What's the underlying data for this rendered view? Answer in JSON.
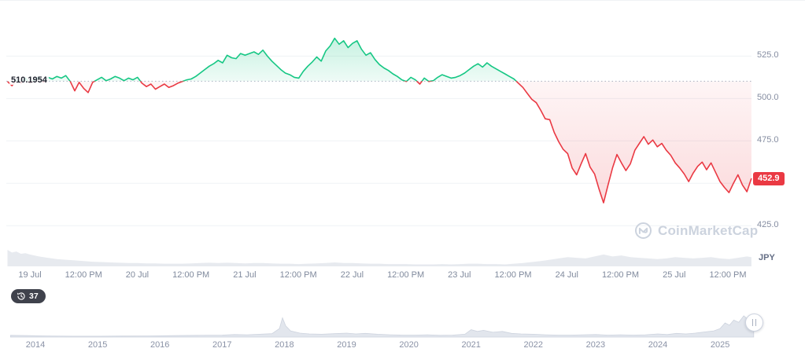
{
  "chart_data": {
    "type": "line",
    "currency": "JPY",
    "baseline": 510.1954,
    "baseline_label": "510.1954",
    "current_price": 452.9,
    "ylim": [
      420,
      540
    ],
    "y_gridlines": [
      525,
      500,
      475,
      450,
      425
    ],
    "x_labels": [
      "19 Jul",
      "12:00 PM",
      "20 Jul",
      "12:00 PM",
      "21 Jul",
      "12:00 PM",
      "22 Jul",
      "12:00 PM",
      "23 Jul",
      "12:00 PM",
      "24 Jul",
      "12:00 PM",
      "25 Jul",
      "12:00 PM"
    ],
    "colors": {
      "up": "#16c784",
      "down": "#ea3943",
      "baseline": "#aab3c4",
      "grid": "#eff2f5",
      "volume": "#e7eaef"
    },
    "series": [
      {
        "name": "price",
        "points": [
          [
            -5,
            510
          ],
          [
            -4,
            507.5
          ],
          [
            -3,
            511
          ],
          [
            -2,
            509
          ],
          [
            -1,
            512
          ],
          [
            0,
            509
          ],
          [
            1,
            511
          ],
          [
            2,
            512.5
          ],
          [
            3,
            509.5
          ],
          [
            4,
            512.5
          ],
          [
            5,
            511.5
          ],
          [
            6,
            513
          ],
          [
            7,
            512
          ],
          [
            8,
            513.5
          ],
          [
            9,
            510
          ],
          [
            10,
            504.5
          ],
          [
            11,
            509.5
          ],
          [
            12,
            506
          ],
          [
            13,
            503.5
          ],
          [
            14,
            509.5
          ],
          [
            15,
            511
          ],
          [
            16,
            512.5
          ],
          [
            17,
            510.5
          ],
          [
            18,
            511.5
          ],
          [
            19,
            513
          ],
          [
            20,
            512
          ],
          [
            21,
            510.5
          ],
          [
            22,
            512
          ],
          [
            23,
            511
          ],
          [
            24,
            512.5
          ],
          [
            25,
            509
          ],
          [
            26,
            507
          ],
          [
            27,
            508.5
          ],
          [
            28,
            505.5
          ],
          [
            29,
            507
          ],
          [
            30,
            508.5
          ],
          [
            31,
            506.5
          ],
          [
            32,
            507.5
          ],
          [
            33,
            509
          ],
          [
            34,
            510
          ],
          [
            35,
            511
          ],
          [
            36,
            511.5
          ],
          [
            37,
            513
          ],
          [
            38,
            515
          ],
          [
            39,
            517
          ],
          [
            40,
            519
          ],
          [
            41,
            520.5
          ],
          [
            42,
            522.5
          ],
          [
            43,
            521
          ],
          [
            44,
            525.5
          ],
          [
            45,
            524
          ],
          [
            46,
            523.5
          ],
          [
            47,
            526.5
          ],
          [
            48,
            525.5
          ],
          [
            49,
            526.5
          ],
          [
            50,
            527.5
          ],
          [
            51,
            526
          ],
          [
            52,
            528.5
          ],
          [
            53,
            525
          ],
          [
            54,
            522
          ],
          [
            55,
            519.5
          ],
          [
            56,
            517
          ],
          [
            57,
            515
          ],
          [
            58,
            514
          ],
          [
            59,
            512.5
          ],
          [
            60,
            512
          ],
          [
            61,
            516
          ],
          [
            62,
            519
          ],
          [
            63,
            521.5
          ],
          [
            64,
            524.5
          ],
          [
            65,
            522
          ],
          [
            66,
            528
          ],
          [
            67,
            531
          ],
          [
            68,
            535.5
          ],
          [
            69,
            532
          ],
          [
            70,
            534
          ],
          [
            71,
            530
          ],
          [
            72,
            532.5
          ],
          [
            73,
            534
          ],
          [
            74,
            529
          ],
          [
            75,
            525.5
          ],
          [
            76,
            527
          ],
          [
            77,
            523
          ],
          [
            78,
            520
          ],
          [
            79,
            518
          ],
          [
            80,
            516.5
          ],
          [
            81,
            514.5
          ],
          [
            82,
            513
          ],
          [
            83,
            511
          ],
          [
            84,
            510
          ],
          [
            85,
            512.5
          ],
          [
            86,
            511
          ],
          [
            87,
            508.5
          ],
          [
            88,
            512
          ],
          [
            89,
            510
          ],
          [
            90,
            510.5
          ],
          [
            91,
            512.5
          ],
          [
            92,
            514
          ],
          [
            93,
            513
          ],
          [
            94,
            512
          ],
          [
            95,
            512.5
          ],
          [
            96,
            513.5
          ],
          [
            97,
            515
          ],
          [
            98,
            517
          ],
          [
            99,
            519
          ],
          [
            100,
            520.5
          ],
          [
            101,
            518.5
          ],
          [
            102,
            521
          ],
          [
            103,
            519
          ],
          [
            104,
            517.5
          ],
          [
            105,
            516
          ],
          [
            106,
            514.5
          ],
          [
            107,
            513
          ],
          [
            108,
            511.5
          ],
          [
            109,
            509
          ],
          [
            110,
            506.5
          ],
          [
            111,
            503
          ],
          [
            112,
            499.5
          ],
          [
            113,
            497.5
          ],
          [
            114,
            493
          ],
          [
            115,
            488
          ],
          [
            116,
            487.5
          ],
          [
            117,
            480
          ],
          [
            118,
            474.5
          ],
          [
            119,
            470
          ],
          [
            120,
            467.5
          ],
          [
            121,
            459
          ],
          [
            122,
            455
          ],
          [
            123,
            461.5
          ],
          [
            124,
            467.5
          ],
          [
            125,
            459.5
          ],
          [
            126,
            455.5
          ],
          [
            127,
            446.5
          ],
          [
            128,
            438.5
          ],
          [
            129,
            449
          ],
          [
            130,
            459
          ],
          [
            131,
            467
          ],
          [
            132,
            462
          ],
          [
            133,
            457.5
          ],
          [
            134,
            461.5
          ],
          [
            135,
            469.5
          ],
          [
            136,
            473.5
          ],
          [
            137,
            477.5
          ],
          [
            138,
            473
          ],
          [
            139,
            475.5
          ],
          [
            140,
            471.5
          ],
          [
            141,
            473.5
          ],
          [
            142,
            469.5
          ],
          [
            143,
            466.5
          ],
          [
            144,
            462
          ],
          [
            145,
            459
          ],
          [
            146,
            455.5
          ],
          [
            147,
            451
          ],
          [
            148,
            456
          ],
          [
            149,
            460
          ],
          [
            150,
            462.5
          ],
          [
            151,
            458
          ],
          [
            152,
            462
          ],
          [
            153,
            456.5
          ],
          [
            154,
            451
          ],
          [
            155,
            447.5
          ],
          [
            156,
            444.5
          ],
          [
            157,
            450
          ],
          [
            158,
            455
          ],
          [
            159,
            449
          ],
          [
            160,
            445
          ],
          [
            161,
            452.9
          ]
        ]
      }
    ],
    "volume": [
      [
        -5,
        0.5
      ],
      [
        -4,
        0.42
      ],
      [
        -3,
        0.45
      ],
      [
        -2,
        0.38
      ],
      [
        -1,
        0.4
      ],
      [
        0,
        0.36
      ],
      [
        2,
        0.3
      ],
      [
        4,
        0.26
      ],
      [
        6,
        0.22
      ],
      [
        8,
        0.2
      ],
      [
        10,
        0.18
      ],
      [
        12,
        0.16
      ],
      [
        14,
        0.14
      ],
      [
        16,
        0.13
      ],
      [
        18,
        0.12
      ],
      [
        20,
        0.11
      ],
      [
        22,
        0.1
      ],
      [
        24,
        0.1
      ],
      [
        26,
        0.09
      ],
      [
        28,
        0.09
      ],
      [
        30,
        0.08
      ],
      [
        32,
        0.08
      ],
      [
        34,
        0.08
      ],
      [
        36,
        0.09
      ],
      [
        38,
        0.1
      ],
      [
        40,
        0.11
      ],
      [
        42,
        0.1
      ],
      [
        44,
        0.11
      ],
      [
        46,
        0.1
      ],
      [
        48,
        0.09
      ],
      [
        50,
        0.1
      ],
      [
        52,
        0.1
      ],
      [
        54,
        0.09
      ],
      [
        56,
        0.08
      ],
      [
        58,
        0.08
      ],
      [
        60,
        0.07
      ],
      [
        62,
        0.08
      ],
      [
        64,
        0.09
      ],
      [
        66,
        0.1
      ],
      [
        68,
        0.12
      ],
      [
        70,
        0.1
      ],
      [
        72,
        0.1
      ],
      [
        74,
        0.09
      ],
      [
        76,
        0.08
      ],
      [
        78,
        0.08
      ],
      [
        80,
        0.07
      ],
      [
        82,
        0.07
      ],
      [
        84,
        0.07
      ],
      [
        86,
        0.06
      ],
      [
        88,
        0.06
      ],
      [
        90,
        0.06
      ],
      [
        92,
        0.07
      ],
      [
        94,
        0.06
      ],
      [
        96,
        0.07
      ],
      [
        98,
        0.08
      ],
      [
        100,
        0.08
      ],
      [
        102,
        0.07
      ],
      [
        104,
        0.07
      ],
      [
        106,
        0.06
      ],
      [
        108,
        0.08
      ],
      [
        110,
        0.1
      ],
      [
        112,
        0.13
      ],
      [
        114,
        0.16
      ],
      [
        116,
        0.2
      ],
      [
        118,
        0.24
      ],
      [
        120,
        0.28
      ],
      [
        122,
        0.26
      ],
      [
        124,
        0.24
      ],
      [
        126,
        0.3
      ],
      [
        128,
        0.36
      ],
      [
        130,
        0.3
      ],
      [
        132,
        0.33
      ],
      [
        134,
        0.28
      ],
      [
        136,
        0.26
      ],
      [
        138,
        0.24
      ],
      [
        140,
        0.22
      ],
      [
        142,
        0.24
      ],
      [
        144,
        0.28
      ],
      [
        146,
        0.26
      ],
      [
        148,
        0.24
      ],
      [
        150,
        0.26
      ],
      [
        152,
        0.28
      ],
      [
        154,
        0.24
      ],
      [
        156,
        0.22
      ],
      [
        158,
        0.26
      ],
      [
        160,
        0.3
      ],
      [
        161,
        0.28
      ]
    ]
  },
  "y_axis": {
    "tick_labels": [
      "525.0",
      "500.0",
      "475.0",
      "425.0"
    ],
    "price_badge": "452.9",
    "unit": "JPY"
  },
  "history_pill": {
    "count": "37"
  },
  "watermark": {
    "label": "CoinMarketCap"
  },
  "navigator": {
    "years": [
      "2014",
      "2015",
      "2016",
      "2017",
      "2018",
      "2019",
      "2020",
      "2021",
      "2022",
      "2023",
      "2024",
      "2025"
    ],
    "area": [
      [
        2013.6,
        0.06
      ],
      [
        2013.9,
        0.05
      ],
      [
        2014.2,
        0.04
      ],
      [
        2014.6,
        0.03
      ],
      [
        2015,
        0.03
      ],
      [
        2015.4,
        0.035
      ],
      [
        2015.8,
        0.04
      ],
      [
        2016.2,
        0.05
      ],
      [
        2016.6,
        0.06
      ],
      [
        2017,
        0.07
      ],
      [
        2017.2,
        0.09
      ],
      [
        2017.4,
        0.08
      ],
      [
        2017.6,
        0.1
      ],
      [
        2017.8,
        0.12
      ],
      [
        2017.92,
        0.3
      ],
      [
        2017.97,
        0.68
      ],
      [
        2018.02,
        0.4
      ],
      [
        2018.1,
        0.22
      ],
      [
        2018.25,
        0.14
      ],
      [
        2018.4,
        0.11
      ],
      [
        2018.6,
        0.1
      ],
      [
        2018.8,
        0.12
      ],
      [
        2019,
        0.14
      ],
      [
        2019.15,
        0.11
      ],
      [
        2019.3,
        0.13
      ],
      [
        2019.5,
        0.1
      ],
      [
        2019.7,
        0.08
      ],
      [
        2019.9,
        0.07
      ],
      [
        2020.1,
        0.07
      ],
      [
        2020.3,
        0.08
      ],
      [
        2020.5,
        0.06
      ],
      [
        2020.7,
        0.07
      ],
      [
        2020.9,
        0.1
      ],
      [
        2021,
        0.26
      ],
      [
        2021.1,
        0.2
      ],
      [
        2021.2,
        0.24
      ],
      [
        2021.35,
        0.17
      ],
      [
        2021.5,
        0.2
      ],
      [
        2021.65,
        0.13
      ],
      [
        2021.8,
        0.11
      ],
      [
        2022,
        0.1
      ],
      [
        2022.2,
        0.08
      ],
      [
        2022.4,
        0.07
      ],
      [
        2022.6,
        0.07
      ],
      [
        2022.8,
        0.08
      ],
      [
        2023,
        0.09
      ],
      [
        2023.2,
        0.07
      ],
      [
        2023.4,
        0.08
      ],
      [
        2023.6,
        0.07
      ],
      [
        2023.8,
        0.08
      ],
      [
        2024,
        0.11
      ],
      [
        2024.15,
        0.09
      ],
      [
        2024.3,
        0.13
      ],
      [
        2024.45,
        0.11
      ],
      [
        2024.6,
        0.14
      ],
      [
        2024.75,
        0.18
      ],
      [
        2024.9,
        0.22
      ],
      [
        2025,
        0.3
      ],
      [
        2025.08,
        0.5
      ],
      [
        2025.15,
        0.42
      ],
      [
        2025.22,
        0.6
      ],
      [
        2025.3,
        0.52
      ],
      [
        2025.38,
        0.75
      ],
      [
        2025.45,
        0.62
      ],
      [
        2025.5,
        0.78
      ],
      [
        2025.54,
        0.5
      ]
    ]
  }
}
